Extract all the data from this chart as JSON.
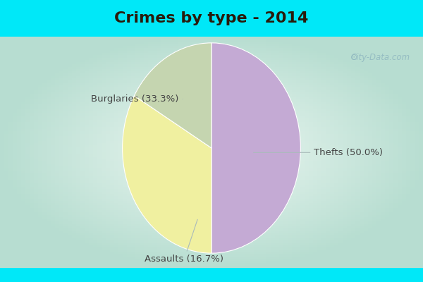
{
  "title": "Crimes by type - 2014",
  "slices": [
    {
      "label": "Thefts (50.0%)",
      "value": 50.0,
      "color": "#c4aad4"
    },
    {
      "label": "Burglaries (33.3%)",
      "value": 33.3,
      "color": "#f0f0a0"
    },
    {
      "label": "Assaults (16.7%)",
      "value": 16.7,
      "color": "#c5d5b0"
    }
  ],
  "bg_cyan": "#00e8f8",
  "bg_inner": "#d8ede4",
  "bg_center": "#f0f8f4",
  "title_fontsize": 16,
  "label_fontsize": 9.5,
  "watermark": "City-Data.com",
  "startangle": 90,
  "title_color": "#2a1a0a",
  "label_color": "#444444",
  "arrow_color": "#aabbbb",
  "top_bar_height": 0.13,
  "bottom_bar_height": 0.05
}
